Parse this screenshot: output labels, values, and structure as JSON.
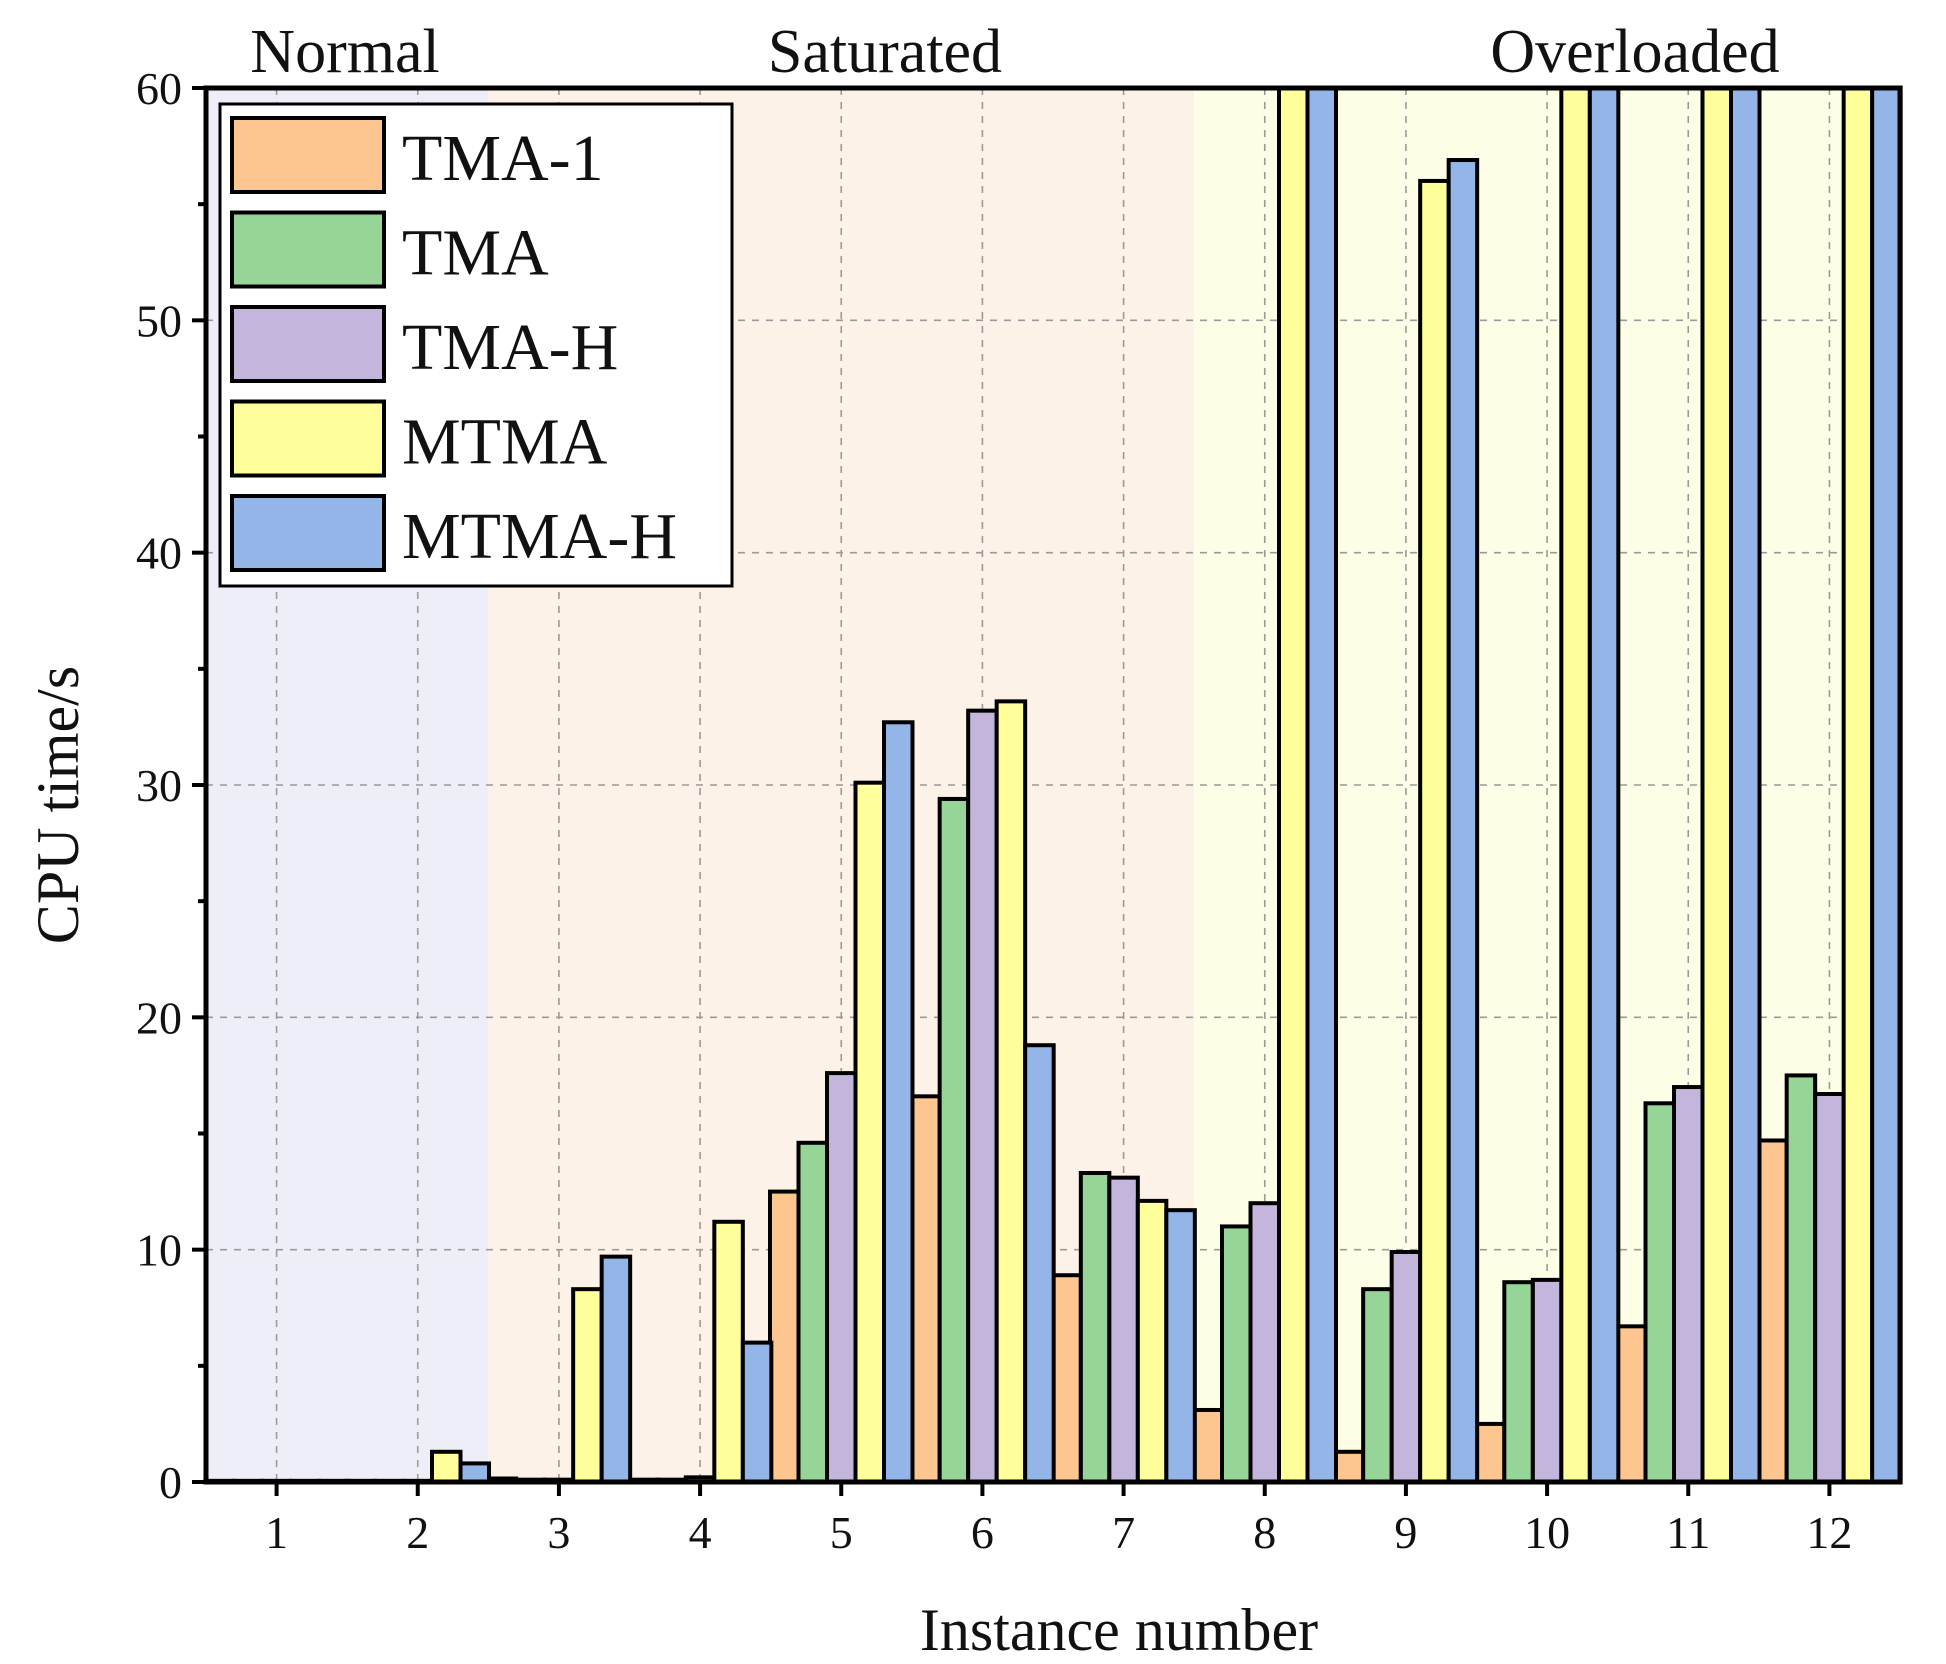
{
  "chart_data": {
    "type": "bar",
    "xlabel": "Instance number",
    "ylabel": "CPU time/s",
    "ylim": [
      0,
      60
    ],
    "yticks": [
      "0",
      "10",
      "20",
      "30",
      "40",
      "50",
      "60"
    ],
    "categories": [
      "1",
      "2",
      "3",
      "4",
      "5",
      "6",
      "7",
      "8",
      "9",
      "10",
      "11",
      "12"
    ],
    "grid": true,
    "legend_position": "top-left",
    "regions": [
      {
        "label": "Normal",
        "from_category": 1,
        "to_category": 2,
        "color": "#eeeef8"
      },
      {
        "label": "Saturated",
        "from_category": 3,
        "to_category": 7,
        "color": "#fdf2e8"
      },
      {
        "label": "Overloaded",
        "from_category": 8,
        "to_category": 12,
        "color": "#fefee6"
      }
    ],
    "series": [
      {
        "name": "TMA-1",
        "color": "#fdc690",
        "values": [
          0.05,
          0.05,
          0.15,
          0.1,
          12.5,
          16.6,
          8.9,
          3.1,
          1.3,
          2.5,
          6.7,
          14.7
        ]
      },
      {
        "name": "TMA",
        "color": "#96d497",
        "values": [
          0.05,
          0.05,
          0.1,
          0.1,
          14.6,
          29.4,
          13.3,
          11.0,
          8.3,
          8.6,
          16.3,
          17.5
        ]
      },
      {
        "name": "TMA-H",
        "color": "#c3b5db",
        "values": [
          0.05,
          0.05,
          0.1,
          0.2,
          17.6,
          33.2,
          13.1,
          12.0,
          9.9,
          8.7,
          17.0,
          16.7
        ]
      },
      {
        "name": "MTMA",
        "color": "#fefe9a",
        "values": [
          0.05,
          1.3,
          8.3,
          11.2,
          30.1,
          33.6,
          12.1,
          60,
          56.0,
          60,
          60,
          60
        ]
      },
      {
        "name": "MTMA-H",
        "color": "#94b5e8",
        "values": [
          0.05,
          0.8,
          9.7,
          6.0,
          32.7,
          18.8,
          11.7,
          60,
          56.9,
          60,
          60,
          60
        ]
      }
    ]
  }
}
